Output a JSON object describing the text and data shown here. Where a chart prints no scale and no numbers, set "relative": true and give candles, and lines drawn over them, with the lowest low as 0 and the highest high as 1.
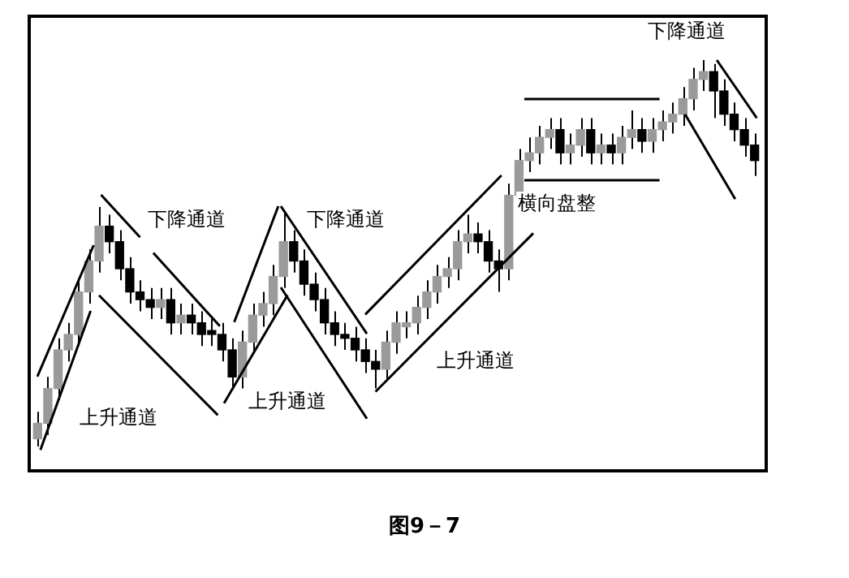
{
  "chart_data": {
    "type": "candlestick",
    "title": "图9－7",
    "relative": true,
    "legend": false,
    "categories": [
      null,
      null,
      null,
      null,
      null,
      null,
      null,
      null,
      null,
      null,
      null,
      null,
      null,
      null,
      null,
      null,
      null,
      null,
      null,
      null,
      null,
      null,
      null,
      null,
      null,
      null,
      null,
      null,
      null,
      null,
      null,
      null,
      null,
      null,
      null,
      null,
      null,
      null,
      null,
      null,
      null,
      null,
      null,
      null,
      null,
      null,
      null,
      null,
      null,
      null,
      null,
      null,
      null,
      null,
      null,
      null,
      null,
      null,
      null,
      null,
      null,
      null,
      null,
      null,
      null,
      null,
      null,
      null,
      null,
      null,
      null
    ],
    "annotations": [
      "下降通道",
      "下降通道",
      "下降通道",
      "横向盘整",
      "上升通道",
      "上升通道",
      "上升通道"
    ],
    "ohlc": [
      [
        0.02,
        0.09,
        0,
        0.06
      ],
      [
        0.06,
        0.18,
        0.03,
        0.15
      ],
      [
        0.15,
        0.28,
        0.12,
        0.25
      ],
      [
        0.25,
        0.32,
        0.22,
        0.29
      ],
      [
        0.29,
        0.43,
        0.26,
        0.4
      ],
      [
        0.4,
        0.51,
        0.37,
        0.48
      ],
      [
        0.48,
        0.62,
        0.45,
        0.57
      ],
      [
        0.57,
        0.6,
        0.5,
        0.53
      ],
      [
        0.53,
        0.56,
        0.43,
        0.46
      ],
      [
        0.46,
        0.49,
        0.37,
        0.4
      ],
      [
        0.4,
        0.43,
        0.35,
        0.38
      ],
      [
        0.38,
        0.41,
        0.33,
        0.36
      ],
      [
        0.36,
        0.41,
        0.33,
        0.38
      ],
      [
        0.38,
        0.41,
        0.29,
        0.32
      ],
      [
        0.32,
        0.37,
        0.29,
        0.34
      ],
      [
        0.34,
        0.37,
        0.29,
        0.32
      ],
      [
        0.32,
        0.35,
        0.26,
        0.29
      ],
      [
        0.3,
        0.33,
        0.26,
        0.29
      ],
      [
        0.29,
        0.32,
        0.22,
        0.25
      ],
      [
        0.25,
        0.28,
        0.15,
        0.18
      ],
      [
        0.18,
        0.3,
        0.15,
        0.27
      ],
      [
        0.27,
        0.37,
        0.24,
        0.34
      ],
      [
        0.34,
        0.4,
        0.31,
        0.37
      ],
      [
        0.37,
        0.47,
        0.34,
        0.44
      ],
      [
        0.44,
        0.61,
        0.41,
        0.53
      ],
      [
        0.53,
        0.56,
        0.45,
        0.48
      ],
      [
        0.48,
        0.51,
        0.39,
        0.42
      ],
      [
        0.42,
        0.45,
        0.35,
        0.38
      ],
      [
        0.38,
        0.41,
        0.29,
        0.32
      ],
      [
        0.32,
        0.35,
        0.26,
        0.29
      ],
      [
        0.29,
        0.32,
        0.25,
        0.28
      ],
      [
        0.28,
        0.31,
        0.22,
        0.25
      ],
      [
        0.25,
        0.28,
        0.19,
        0.22
      ],
      [
        0.22,
        0.25,
        0.15,
        0.2
      ],
      [
        0.2,
        0.3,
        0.17,
        0.27
      ],
      [
        0.27,
        0.35,
        0.24,
        0.32
      ],
      [
        0.31,
        0.35,
        0.28,
        0.32
      ],
      [
        0.32,
        0.39,
        0.29,
        0.36
      ],
      [
        0.36,
        0.43,
        0.33,
        0.4
      ],
      [
        0.4,
        0.47,
        0.37,
        0.44
      ],
      [
        0.44,
        0.49,
        0.41,
        0.46
      ],
      [
        0.46,
        0.56,
        0.43,
        0.53
      ],
      [
        0.53,
        0.6,
        0.5,
        0.55
      ],
      [
        0.55,
        0.58,
        0.5,
        0.53
      ],
      [
        0.53,
        0.56,
        0.45,
        0.48
      ],
      [
        0.48,
        0.51,
        0.4,
        0.46
      ],
      [
        0.46,
        0.68,
        0.43,
        0.65
      ],
      [
        0.65,
        0.77,
        0.62,
        0.74
      ],
      [
        0.74,
        0.8,
        0.71,
        0.76
      ],
      [
        0.76,
        0.83,
        0.73,
        0.8
      ],
      [
        0.8,
        0.85,
        0.77,
        0.82
      ],
      [
        0.82,
        0.85,
        0.73,
        0.76
      ],
      [
        0.76,
        0.81,
        0.73,
        0.78
      ],
      [
        0.78,
        0.85,
        0.75,
        0.82
      ],
      [
        0.82,
        0.85,
        0.73,
        0.76
      ],
      [
        0.76,
        0.81,
        0.73,
        0.78
      ],
      [
        0.78,
        0.81,
        0.73,
        0.76
      ],
      [
        0.76,
        0.83,
        0.73,
        0.8
      ],
      [
        0.8,
        0.87,
        0.77,
        0.82
      ],
      [
        0.82,
        0.85,
        0.76,
        0.79
      ],
      [
        0.79,
        0.85,
        0.76,
        0.82
      ],
      [
        0.82,
        0.87,
        0.79,
        0.84
      ],
      [
        0.84,
        0.89,
        0.81,
        0.86
      ],
      [
        0.86,
        0.93,
        0.83,
        0.9
      ],
      [
        0.9,
        0.98,
        0.87,
        0.95
      ],
      [
        0.95,
        1,
        0.92,
        0.97
      ],
      [
        0.97,
        0.99,
        0.85,
        0.92
      ],
      [
        0.92,
        0.95,
        0.83,
        0.86
      ],
      [
        0.86,
        0.89,
        0.79,
        0.82
      ],
      [
        0.82,
        0.85,
        0.75,
        0.78
      ],
      [
        0.78,
        0.81,
        0.7,
        0.74
      ]
    ]
  }
}
